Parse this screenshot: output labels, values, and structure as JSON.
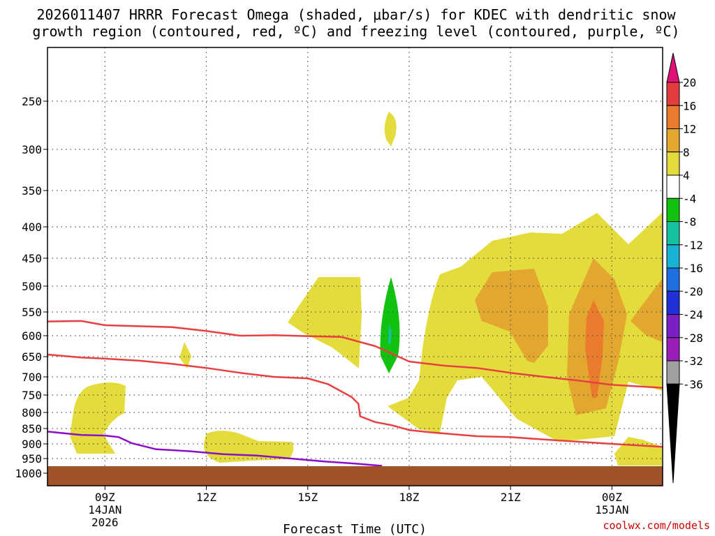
{
  "chart_data": {
    "type": "time-height contour",
    "title_line1": "2026011407 HRRR Forecast Omega (shaded, μbar/s) for KDEC with dendritic snow",
    "title_line2": "growth region (contoured, red, ºC) and freezing level (contoured, purple, ºC)",
    "xlabel": "Forecast Time (UTC)",
    "credit": "coolwx.com/models",
    "x_range_hours": [
      7.3,
      25.5
    ],
    "y_levels": [
      250,
      300,
      350,
      400,
      450,
      500,
      550,
      600,
      650,
      700,
      750,
      800,
      850,
      900,
      950,
      1000
    ],
    "x_ticks": [
      {
        "hour": 9,
        "label": "09Z",
        "sub1": "14JAN",
        "sub2": "2026"
      },
      {
        "hour": 12,
        "label": "12Z",
        "sub1": "",
        "sub2": ""
      },
      {
        "hour": 15,
        "label": "15Z",
        "sub1": "",
        "sub2": ""
      },
      {
        "hour": 18,
        "label": "18Z",
        "sub1": "",
        "sub2": ""
      },
      {
        "hour": 21,
        "label": "21Z",
        "sub1": "",
        "sub2": ""
      },
      {
        "hour": 24,
        "label": "00Z",
        "sub1": "15JAN",
        "sub2": ""
      }
    ],
    "colorbar": {
      "labels": [
        "20",
        "16",
        "12",
        "8",
        "4",
        "-4",
        "-8",
        "-12",
        "-16",
        "-20",
        "-24",
        "-28",
        "-32",
        "-36"
      ],
      "top_color": "#e0107a",
      "bottom_color": "#000000",
      "colors": [
        "#e33c3c",
        "#ea7a2c",
        "#e3a72f",
        "#e3dc3c",
        "#ffffff",
        "#11c211",
        "#14c2a0",
        "#17b3d2",
        "#1f6fe0",
        "#2130d6",
        "#7a1fc6",
        "#9a1fb8",
        "#a0a0a0"
      ]
    },
    "dendritic_lines": [
      {
        "name": "-12C",
        "color": "#e84040",
        "points": [
          [
            7.3,
            570
          ],
          [
            8.3,
            569
          ],
          [
            9,
            578
          ],
          [
            10,
            580
          ],
          [
            11,
            582
          ],
          [
            12,
            590
          ],
          [
            13,
            600
          ],
          [
            14,
            599
          ],
          [
            15,
            601
          ],
          [
            16,
            603
          ],
          [
            17,
            625
          ],
          [
            18,
            662
          ],
          [
            19,
            672
          ],
          [
            20,
            678
          ],
          [
            21,
            690
          ],
          [
            22,
            700
          ],
          [
            23,
            710
          ],
          [
            24,
            722
          ],
          [
            25.5,
            730
          ]
        ]
      },
      {
        "name": "-18C",
        "color": "#e84040",
        "points": [
          [
            7.3,
            645
          ],
          [
            8.3,
            652
          ],
          [
            9,
            655
          ],
          [
            10,
            660
          ],
          [
            11,
            668
          ],
          [
            12,
            678
          ],
          [
            13,
            690
          ],
          [
            14,
            700
          ],
          [
            15,
            704
          ],
          [
            15.6,
            720
          ],
          [
            16.3,
            756
          ],
          [
            16.5,
            775
          ],
          [
            16.55,
            812
          ],
          [
            17,
            830
          ],
          [
            17.5,
            840
          ],
          [
            18,
            855
          ],
          [
            18.7,
            863
          ],
          [
            20,
            875
          ],
          [
            21,
            878
          ],
          [
            22,
            886
          ],
          [
            23,
            893
          ],
          [
            24,
            900
          ],
          [
            25.5,
            910
          ]
        ]
      }
    ],
    "freezing_level": {
      "name": "0C",
      "color": "#8a10c8",
      "points": [
        [
          7.3,
          860
        ],
        [
          8.3,
          871
        ],
        [
          9,
          873
        ],
        [
          9.4,
          878
        ],
        [
          9.8,
          898
        ],
        [
          10.5,
          918
        ],
        [
          11.5,
          925
        ],
        [
          12.5,
          935
        ],
        [
          13.5,
          940
        ],
        [
          14.5,
          950
        ],
        [
          15.5,
          960
        ],
        [
          16.5,
          968
        ],
        [
          17.2,
          975
        ]
      ]
    },
    "omega_shaded": [
      {
        "value": "+4 to +8",
        "color": "#e3dc3c",
        "regions": [
          "upper blob near 17Z 260-300 hPa",
          "small blob near 11Z 620-700 hPa",
          "lower-left blob 08-10Z 720-920 hPa",
          "low blob 12-14Z 850-955 hPa",
          "blob 14.3-16.3Z 480-700 hPa",
          "large area 17.2-25.5Z 380-880 hPa",
          "small blob 00Z 940-970 hPa"
        ]
      },
      {
        "value": "+8 to +12",
        "color": "#e3a72f",
        "regions": [
          "19.7-20.5Z 500-630 hPa",
          "22.5-24Z 500-850 hPa",
          "25-25.5Z 480-650 hPa"
        ]
      },
      {
        "value": "+12 to +16",
        "color": "#ea7a2c",
        "regions": [
          "23.2-23.6Z 540-755 hPa"
        ]
      },
      {
        "value": "-4 to -8",
        "color": "#11c211",
        "regions": [
          "16.7-17.3Z 480-690 hPa"
        ]
      },
      {
        "value": "-8 to -12",
        "color": "#14c2a0",
        "regions": [
          "16.8-17Z 585-610 hPa"
        ]
      }
    ]
  }
}
